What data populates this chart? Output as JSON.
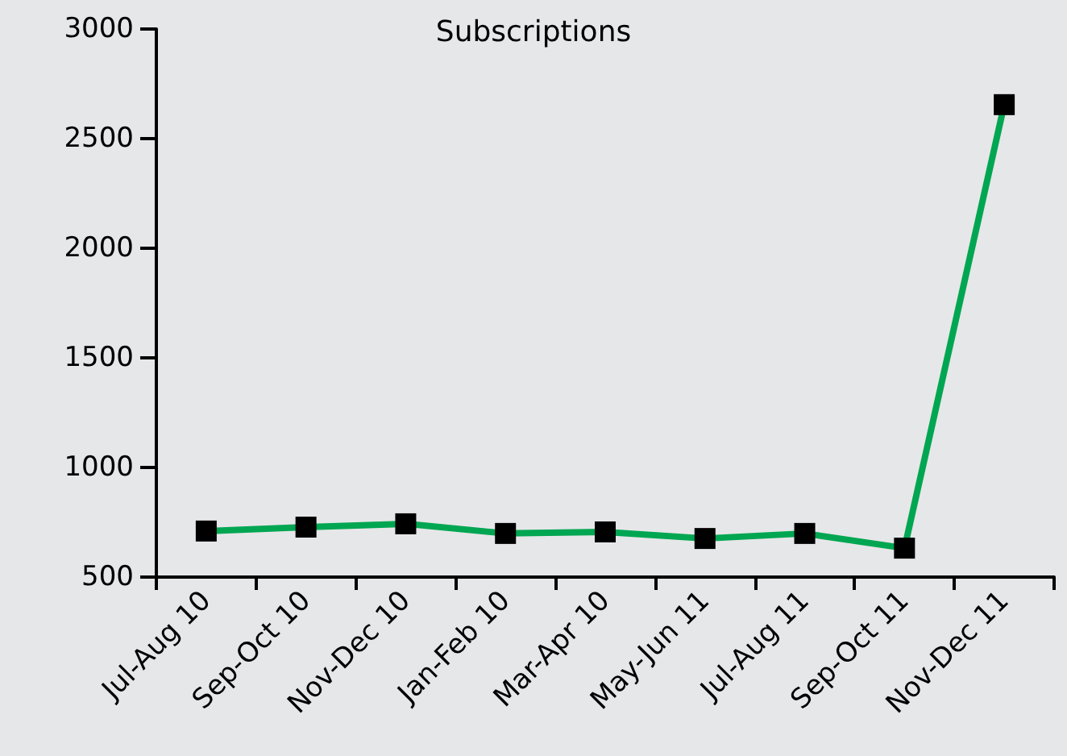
{
  "chart_data": {
    "type": "line",
    "title": "Subscriptions",
    "categories": [
      "Jul-Aug 10",
      "Sep-Oct 10",
      "Nov-Dec 10",
      "Jan-Feb 10",
      "Mar-Apr 10",
      "May-Jun 11",
      "Jul-Aug 11",
      "Sep-Oct 11",
      "Nov-Dec 11"
    ],
    "series": [
      {
        "color": "#00a651",
        "values": [
          710,
          728,
          743,
          699,
          706,
          676,
          699,
          632,
          2655
        ]
      }
    ],
    "ylim": [
      500,
      3000
    ],
    "yticks": [
      500,
      1000,
      1500,
      2000,
      2500,
      3000
    ],
    "grid": false,
    "marker": "square",
    "line_style": "solid"
  }
}
